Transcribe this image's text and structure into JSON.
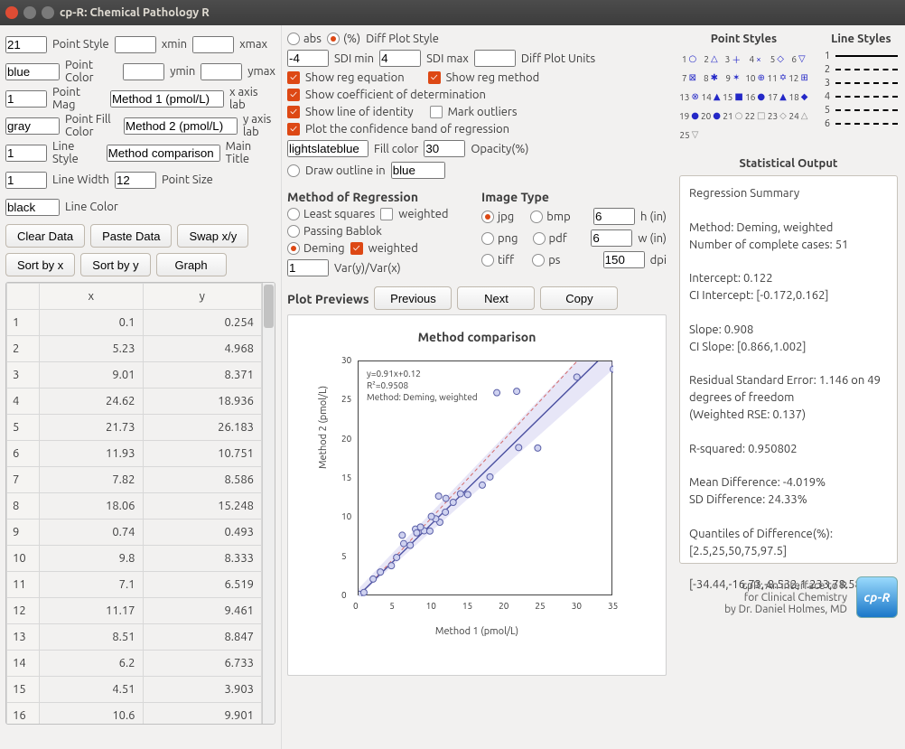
{
  "window": {
    "title": "cp-R: Chemical Pathology R"
  },
  "left": {
    "point_style": "21",
    "point_style_lbl": "Point Style",
    "point_color": "blue",
    "point_color_lbl": "Point Color",
    "point_mag": "1",
    "point_mag_lbl": "Point Mag",
    "point_fill": "gray",
    "point_fill_lbl": "Point Fill Color",
    "line_style": "1",
    "line_style_lbl": "Line Style",
    "line_width": "1",
    "line_width_lbl": "Line Width",
    "point_size": "12",
    "point_size_lbl": "Point Size",
    "line_color": "black",
    "line_color_lbl": "Line Color",
    "btn_clear": "Clear Data",
    "btn_paste": "Paste Data",
    "btn_swap": "Swap x/y",
    "btn_sortx": "Sort by x",
    "btn_sorty": "Sort by y",
    "btn_graph": "Graph",
    "col_x": "x",
    "col_y": "y",
    "rows": [
      {
        "i": "1",
        "x": "0.1",
        "y": "0.254"
      },
      {
        "i": "2",
        "x": "5.23",
        "y": "4.968"
      },
      {
        "i": "3",
        "x": "9.01",
        "y": "8.371"
      },
      {
        "i": "4",
        "x": "24.62",
        "y": "18.936"
      },
      {
        "i": "5",
        "x": "21.73",
        "y": "26.183"
      },
      {
        "i": "6",
        "x": "11.93",
        "y": "10.751"
      },
      {
        "i": "7",
        "x": "7.82",
        "y": "8.586"
      },
      {
        "i": "8",
        "x": "18.06",
        "y": "15.248"
      },
      {
        "i": "9",
        "x": "0.74",
        "y": "0.493"
      },
      {
        "i": "10",
        "x": "9.8",
        "y": "8.333"
      },
      {
        "i": "11",
        "x": "7.1",
        "y": "6.519"
      },
      {
        "i": "12",
        "x": "11.17",
        "y": "9.461"
      },
      {
        "i": "13",
        "x": "8.51",
        "y": "8.847"
      },
      {
        "i": "14",
        "x": "6.2",
        "y": "6.733"
      },
      {
        "i": "15",
        "x": "4.51",
        "y": "3.903"
      },
      {
        "i": "16",
        "x": "10.6",
        "y": "9.901"
      }
    ]
  },
  "mid": {
    "xmin_lbl": "xmin",
    "xmax_lbl": "xmax",
    "ymin_lbl": "ymin",
    "ymax_lbl": "ymax",
    "xaxis": "Method 1 (pmol/L)",
    "xaxis_lbl": "x axis lab",
    "yaxis": "Method 2 (pmol/L)",
    "yaxis_lbl": "y axis lab",
    "main": "Method comparison",
    "main_lbl": "Main Title",
    "diff_abs": "abs",
    "diff_pct": "(%)",
    "diff_lbl": "Diff Plot Style",
    "sdi_min": "-4",
    "sdi_min_lbl": "SDI min",
    "sdi_max": "4",
    "sdi_max_lbl": "SDI max",
    "diff_units_lbl": "Diff Plot Units",
    "chk_eq": "Show reg equation",
    "chk_method": "Show reg method",
    "chk_r2": "Show coefficient of determination",
    "chk_ident": "Show line of identity",
    "chk_outlier": "Mark outliers",
    "chk_conf": "Plot the confidence band of regression",
    "fill": "lightslateblue",
    "fill_lbl": "Fill color",
    "opacity": "30",
    "opacity_lbl": "Opacity(%)",
    "drawoutline": "Draw outline in",
    "outline_color": "blue",
    "reg_title": "Method of Regression",
    "reg_ls": "Least squares",
    "reg_weighted": "weighted",
    "reg_pb": "Passing Bablok",
    "reg_deming": "Deming",
    "varyx": "1",
    "varyx_lbl": "Var(y)/Var(x)",
    "img_title": "Image Type",
    "img_jpg": "jpg",
    "img_bmp": "bmp",
    "img_png": "png",
    "img_pdf": "pdf",
    "img_tiff": "tiff",
    "img_ps": "ps",
    "h": "6",
    "h_lbl": "h (in)",
    "w": "6",
    "w_lbl": "w (in)",
    "dpi": "150",
    "dpi_lbl": "dpi",
    "previews": "Plot Previews",
    "btn_prev": "Previous",
    "btn_next": "Next",
    "btn_copy": "Copy",
    "chart": {
      "type": "scatter",
      "title": "Method comparison",
      "xlabel": "Method 1 (pmol/L)",
      "ylabel": "Method 2 (pmol/L)",
      "xlim": [
        0,
        35
      ],
      "ylim": [
        0,
        30
      ],
      "xtick_step": 5,
      "ytick_step": 5,
      "eq_line1": "y=0.91x+0.12",
      "eq_line2": "R²=0.9508",
      "eq_line3": "Method: Deming, weighted",
      "point_color": "#7a7fbf",
      "point_fill": "#cfd2f0",
      "point_size": 3.5,
      "regline_color": "#4a4fa0",
      "identity_color": "#d46a6a",
      "band_fill": "#b9b8e8",
      "band_opacity": 0.35,
      "points": [
        [
          0.1,
          0.254
        ],
        [
          5.23,
          4.968
        ],
        [
          9.01,
          8.371
        ],
        [
          24.62,
          18.936
        ],
        [
          21.73,
          26.183
        ],
        [
          11.93,
          10.751
        ],
        [
          7.82,
          8.586
        ],
        [
          18.06,
          15.248
        ],
        [
          0.74,
          0.493
        ],
        [
          9.8,
          8.333
        ],
        [
          7.1,
          6.519
        ],
        [
          11.17,
          9.461
        ],
        [
          8.51,
          8.847
        ],
        [
          6.2,
          6.733
        ],
        [
          4.51,
          3.903
        ],
        [
          10.6,
          9.901
        ],
        [
          3,
          3.1
        ],
        [
          2,
          2.2
        ],
        [
          12,
          12.5
        ],
        [
          14,
          13.1
        ],
        [
          17,
          14.2
        ],
        [
          19,
          26
        ],
        [
          22,
          19
        ],
        [
          30,
          28
        ],
        [
          35,
          29
        ],
        [
          6,
          7.8
        ],
        [
          8,
          8.1
        ],
        [
          10,
          10.2
        ],
        [
          11,
          12.8
        ],
        [
          13,
          12
        ],
        [
          15,
          13
        ]
      ]
    }
  },
  "right": {
    "pstyles_title": "Point Styles",
    "lstyles_title": "Line Styles",
    "stat_title": "Statistical Output",
    "stat": {
      "hdr": "Regression Summary",
      "l1": "Method: Deming, weighted",
      "l2": "Number of complete cases: 51",
      "l3": "Intercept: 0.122",
      "l4": "CI Intercept: [-0.172,0.162]",
      "l5": "Slope: 0.908",
      "l6": "CI Slope: [0.866,1.002]",
      "l7": "Residual Standard Error: 1.146 on 49 degrees of freedom",
      "l8": "(Weighted RSE: 0.137)",
      "l9": "R-squared: 0.950802",
      "l10": "Mean Difference: -4.019%",
      "l11": "SD Difference: 24.33%",
      "l12": "Quantiles of Difference(%): [2.5,25,50,75,97.5]",
      "l13": "[-34.44,-16.73,-8.532,1.233,78.58]"
    },
    "credit1": "cpR: An interface to R",
    "credit2": "for Clinical Chemistry",
    "credit3": "by Dr. Daniel Holmes, MD",
    "logo": "cp-R"
  }
}
